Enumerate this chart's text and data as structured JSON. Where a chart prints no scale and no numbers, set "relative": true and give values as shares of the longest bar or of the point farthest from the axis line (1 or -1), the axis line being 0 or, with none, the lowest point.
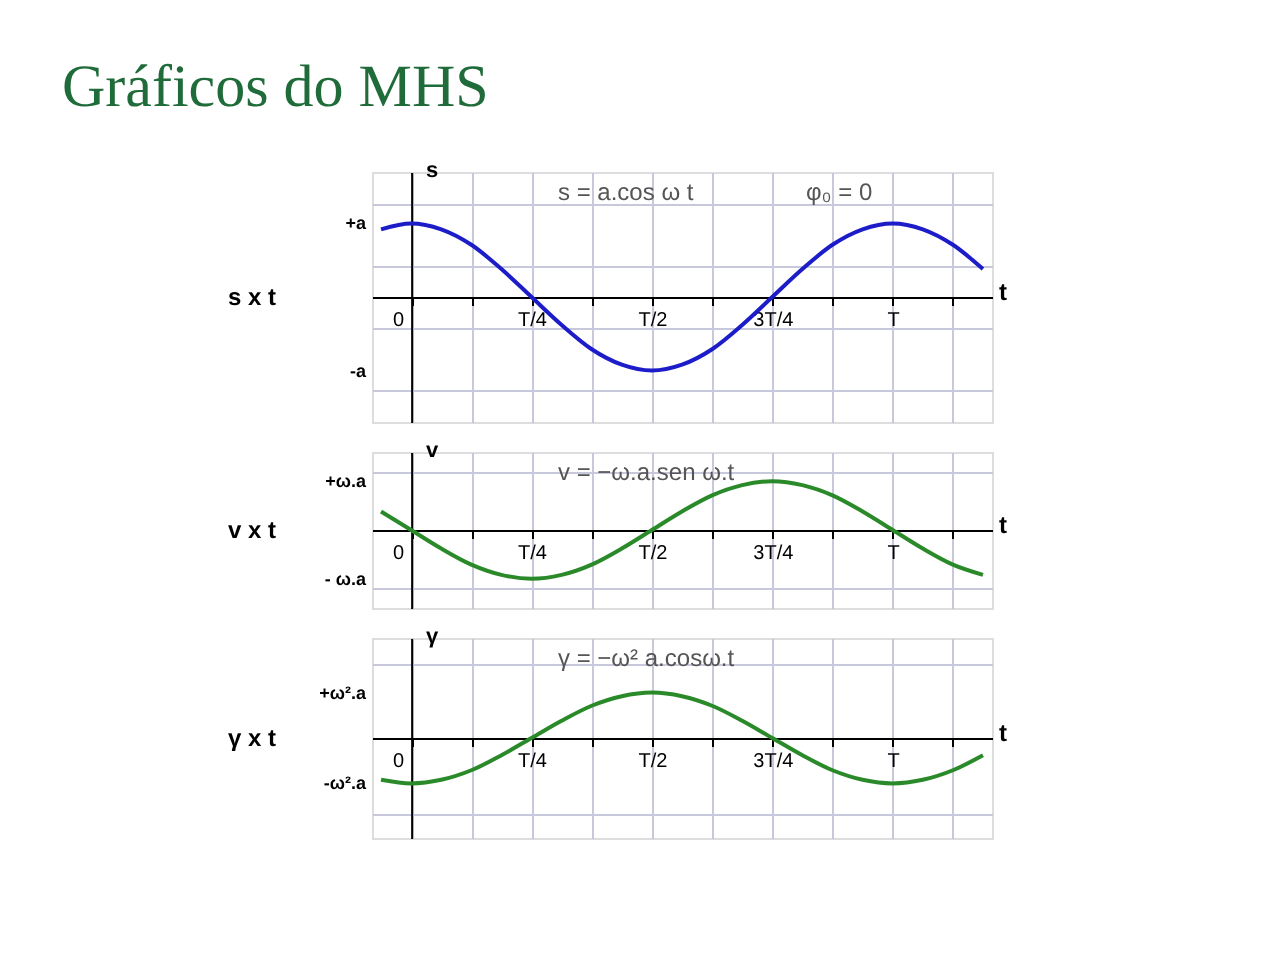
{
  "chart_data": [
    {
      "type": "line",
      "relative": true,
      "title": "Gráficos do MHS",
      "xlabel": "t",
      "ylabel": "s",
      "annotations": [
        "s x t",
        "s = a.cos ω t",
        "φ₀ = 0",
        "+a",
        "-a"
      ],
      "categories": [
        null,
        "0",
        null,
        null,
        null,
        "T/4",
        null,
        null,
        null,
        "T/2",
        null,
        null,
        null,
        "3T/4",
        null,
        null,
        null,
        "T",
        null,
        null,
        null
      ],
      "series": [
        {
          "color": "#1c1cc8",
          "values": [
            0.92,
            1,
            0.92,
            0.71,
            0.38,
            0,
            -0.38,
            -0.71,
            -0.92,
            -1,
            -0.92,
            -0.71,
            -0.38,
            0,
            0.38,
            0.71,
            0.92,
            1,
            0.92,
            0.71,
            0.38
          ]
        }
      ],
      "grid": true
    },
    {
      "type": "line",
      "relative": true,
      "xlabel": "t",
      "ylabel": "v",
      "annotations": [
        "v x t",
        "v = −ω.a.sen ω.t",
        "+ω.a",
        "- ω.a"
      ],
      "categories": [
        null,
        "0",
        null,
        null,
        null,
        "T/4",
        null,
        null,
        null,
        "T/2",
        null,
        null,
        null,
        "3T/4",
        null,
        null,
        null,
        "T",
        null,
        null,
        null
      ],
      "series": [
        {
          "color": "#2a8a2a",
          "values": [
            0.38,
            0,
            -0.38,
            -0.71,
            -0.92,
            -1,
            -0.92,
            -0.71,
            -0.38,
            0,
            0.38,
            0.71,
            0.92,
            1,
            0.92,
            0.71,
            0.38,
            0,
            -0.38,
            -0.71,
            -0.92
          ]
        }
      ],
      "grid": true
    },
    {
      "type": "line",
      "relative": true,
      "xlabel": "t",
      "ylabel": "γ",
      "annotations": [
        "γ x t",
        "γ = −ω² a.cosω.t",
        "+ω².a",
        "-ω².a"
      ],
      "categories": [
        null,
        "0",
        null,
        null,
        null,
        "T/4",
        null,
        null,
        null,
        "T/2",
        null,
        null,
        null,
        "3T/4",
        null,
        null,
        null,
        "T",
        null,
        null,
        null
      ],
      "series": [
        {
          "color": "#2a8a2a",
          "values": [
            -0.92,
            -1,
            -0.92,
            -0.71,
            -0.38,
            0,
            0.38,
            0.71,
            0.92,
            1,
            0.92,
            0.71,
            0.38,
            0,
            -0.38,
            -0.71,
            -0.92,
            -1,
            -0.92,
            -0.71,
            -0.38
          ]
        }
      ],
      "grid": true
    }
  ]
}
